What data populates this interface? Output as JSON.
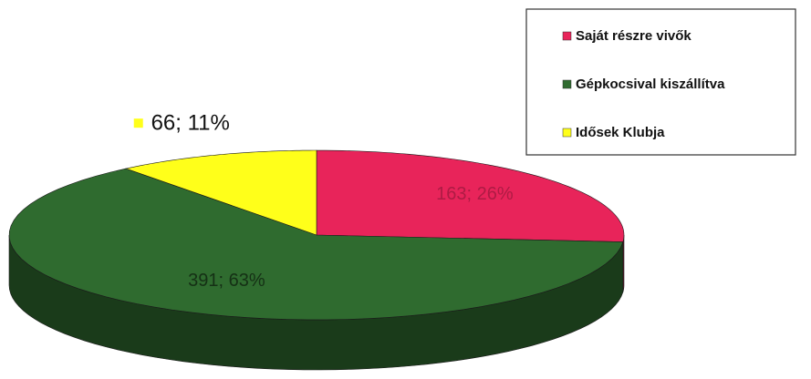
{
  "chart_data": {
    "type": "pie",
    "three_d": true,
    "categories": [
      "Saját részre vivők",
      "Gépkocsival kiszállítva",
      "Idősek Klubja"
    ],
    "values": [
      163,
      391,
      66
    ],
    "value_labels": [
      "163; 26%",
      "391; 63%",
      "66; 11%"
    ],
    "colors": [
      "#e8245a",
      "#2f6b2f",
      "#ffff1a"
    ],
    "legend": "top-right"
  }
}
